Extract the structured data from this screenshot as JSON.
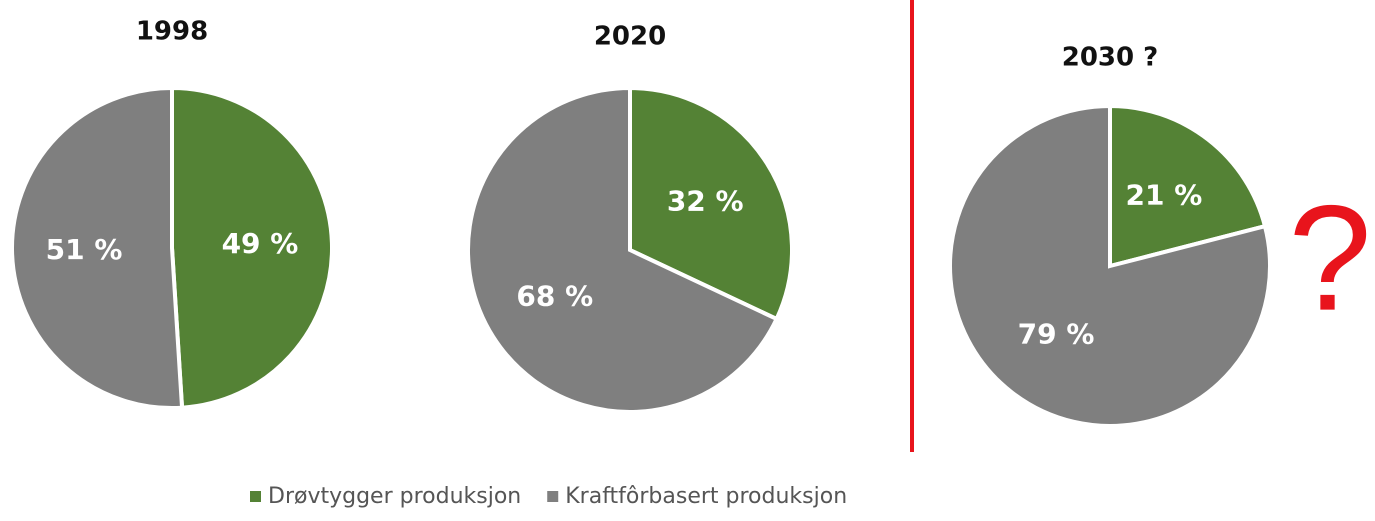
{
  "chart_data": [
    {
      "type": "pie",
      "title": "1998",
      "categories": [
        "Drøvtygger produksjon",
        "Kraftfôrbasert produksjon"
      ],
      "values": [
        49,
        51
      ],
      "value_labels": [
        "49 %",
        "51 %"
      ],
      "colors": [
        "#548235",
        "#7f7f7f"
      ]
    },
    {
      "type": "pie",
      "title": "2020",
      "categories": [
        "Drøvtygger produksjon",
        "Kraftfôrbasert produksjon"
      ],
      "values": [
        32,
        68
      ],
      "value_labels": [
        "32 %",
        "68 %"
      ],
      "colors": [
        "#548235",
        "#7f7f7f"
      ]
    },
    {
      "type": "pie",
      "title": "2030 ?",
      "categories": [
        "Drøvtygger produksjon",
        "Kraftfôrbasert produksjon"
      ],
      "values": [
        21,
        79
      ],
      "value_labels": [
        "21 %",
        "79 %"
      ],
      "colors": [
        "#548235",
        "#7f7f7f"
      ],
      "annotation": "?"
    }
  ]
}
